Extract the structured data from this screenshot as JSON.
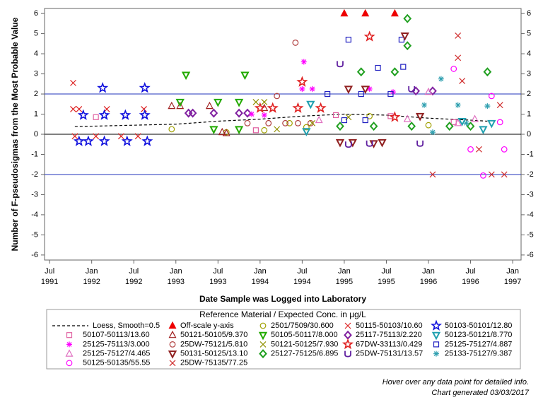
{
  "chart_data": {
    "type": "scatter",
    "x_label": "Date Sample was Logged into Laboratory",
    "y_label": "Number of F-pseudosigmas from the Most Probable Value",
    "xlim": [
      1991.44,
      1997.1
    ],
    "ylim": [
      -6.25,
      6.25
    ],
    "xticks": [
      {
        "value": 1991.5,
        "label": "Jul 1991"
      },
      {
        "value": 1992.0,
        "label": "Jan 1992"
      },
      {
        "value": 1992.5,
        "label": "Jul 1992"
      },
      {
        "value": 1993.0,
        "label": "Jan 1993"
      },
      {
        "value": 1993.5,
        "label": "Jul 1993"
      },
      {
        "value": 1994.0,
        "label": "Jan 1994"
      },
      {
        "value": 1994.5,
        "label": "Jul 1994"
      },
      {
        "value": 1995.0,
        "label": "Jan 1995"
      },
      {
        "value": 1995.5,
        "label": "Jul 1995"
      },
      {
        "value": 1996.0,
        "label": "Jan 1996"
      },
      {
        "value": 1996.5,
        "label": "Jul 1996"
      },
      {
        "value": 1997.0,
        "label": "Jan 1997"
      }
    ],
    "yticks": [
      -6,
      -5,
      -4,
      -3,
      -2,
      -1,
      0,
      1,
      2,
      3,
      4,
      5,
      6
    ],
    "y2ticks": [
      -6,
      -5,
      -4,
      -3,
      -2,
      -1,
      0,
      1,
      2,
      3,
      4,
      5,
      6
    ],
    "reference_lines": [
      {
        "value": 2,
        "color": "#2233bb"
      },
      {
        "value": 0,
        "color": "#000000"
      },
      {
        "value": -2,
        "color": "#2233bb"
      }
    ],
    "legend_title": "Reference Material / Expected Conc. in µg/L",
    "legend_columns": 5,
    "notes": [
      "Hover over any data point for detailed info.",
      "Chart generated 03/03/2017"
    ],
    "series": [
      {
        "name": "Loess, Smooth=0.5",
        "color": "#000000",
        "marker": "line",
        "x": [
          1991.8,
          1992.5,
          1993.0,
          1993.5,
          1994.0,
          1994.5,
          1995.0,
          1995.5,
          1996.0,
          1996.5,
          1996.7
        ],
        "values": [
          0.38,
          0.45,
          0.5,
          0.65,
          0.75,
          0.9,
          1.0,
          0.95,
          0.8,
          0.7,
          0.65
        ]
      },
      {
        "name": "Off-scale y-axis",
        "color": "#ee0000",
        "marker": "triangle-filled",
        "x": [
          1995.0,
          1995.25,
          1995.6
        ],
        "values": [
          6,
          6,
          6
        ]
      },
      {
        "name": "2501/7509/30.600",
        "color": "#a0a000",
        "marker": "circle",
        "x": [
          1992.95,
          1993.6,
          1994.05,
          1994.35,
          1994.55,
          1995.3,
          1996.0
        ],
        "values": [
          0.25,
          0.1,
          0.2,
          0.55,
          0.35,
          0.9,
          0.45
        ]
      },
      {
        "name": "50115-50103/10.60",
        "color": "#dd2222",
        "marker": "x",
        "x": [
          1991.78,
          1991.78,
          1991.85,
          1992.18,
          1992.62,
          1991.8,
          1992.05,
          1992.35,
          1992.55
        ],
        "values": [
          2.55,
          1.25,
          1.25,
          1.25,
          1.25,
          -0.1,
          -0.1,
          -0.1,
          -0.1
        ]
      },
      {
        "name": "50103-50101/12.80",
        "color": "#1010dd",
        "marker": "star",
        "x": [
          1991.85,
          1991.9,
          1991.96,
          1992.13,
          1992.15,
          1992.15,
          1992.4,
          1992.42,
          1992.63,
          1992.63,
          1992.66
        ],
        "values": [
          -0.35,
          0.95,
          -0.35,
          2.3,
          0.95,
          -0.35,
          0.95,
          -0.35,
          2.3,
          0.95,
          -0.35
        ]
      },
      {
        "name": "50107-50113/13.60",
        "color": "#e060a0",
        "marker": "square",
        "x": [
          1992.05,
          1993.95,
          1994.9,
          1995.55,
          1996.3
        ],
        "values": [
          0.85,
          0.2,
          0.95,
          0.9,
          0.6
        ]
      },
      {
        "name": "50121-50105/9.370",
        "color": "#a02020",
        "marker": "triangle",
        "x": [
          1992.95,
          1993.05,
          1993.4,
          1993.55,
          1993.6,
          1994.05
        ],
        "values": [
          1.4,
          1.4,
          1.4,
          0.1,
          0.05,
          1.3
        ]
      },
      {
        "name": "50105-50117/8.000",
        "color": "#22aa00",
        "marker": "triangle-down",
        "x": [
          1993.12,
          1993.5,
          1993.82,
          1993.75,
          1993.45,
          1993.75,
          1993.05
        ],
        "values": [
          2.95,
          1.6,
          2.95,
          1.6,
          0.25,
          0.25,
          1.6
        ]
      },
      {
        "name": "25117-75113/2.220",
        "color": "#8020a0",
        "marker": "diamond",
        "x": [
          1993.15,
          1993.2,
          1993.45,
          1993.75,
          1993.85,
          1995.85,
          1996.05
        ],
        "values": [
          1.05,
          1.05,
          1.05,
          1.05,
          1.05,
          2.15,
          2.15
        ]
      },
      {
        "name": "50123-50121/8.770",
        "color": "#20a0b0",
        "marker": "triangle-down",
        "x": [
          1994.55,
          1994.6,
          1996.4,
          1996.65,
          1996.75
        ],
        "values": [
          0.15,
          1.5,
          0.65,
          0.25,
          0.55
        ]
      },
      {
        "name": "25125-75113/3.000",
        "color": "#ff00ff",
        "marker": "asterisk",
        "x": [
          1993.9,
          1994.05,
          1994.5,
          1994.52,
          1994.62,
          1995.3,
          1995.58
        ],
        "values": [
          1.0,
          0.95,
          2.25,
          3.6,
          2.25,
          2.25,
          2.1
        ]
      },
      {
        "name": "25DW-75121/5.810",
        "color": "#b04040",
        "marker": "circle",
        "x": [
          1993.85,
          1994.1,
          1994.2,
          1994.3,
          1994.42,
          1994.45,
          1994.6
        ],
        "values": [
          0.55,
          0.55,
          1.9,
          0.55,
          4.55,
          0.55,
          0.55
        ]
      },
      {
        "name": "50121-50125/7.930",
        "color": "#909000",
        "marker": "x",
        "x": [
          1993.95,
          1994.05,
          1994.2,
          1994.62,
          1995.05
        ],
        "values": [
          1.6,
          1.6,
          0.25,
          0.55,
          0.85
        ]
      },
      {
        "name": "67DW-33113/0.429",
        "color": "#e02020",
        "marker": "star",
        "x": [
          1994.0,
          1994.15,
          1994.45,
          1994.5,
          1994.72,
          1995.3,
          1995.6
        ],
        "values": [
          1.3,
          1.3,
          1.3,
          2.6,
          1.3,
          4.85,
          0.85
        ]
      },
      {
        "name": "25125-75127/4.887",
        "color": "#2020c0",
        "marker": "square",
        "x": [
          1994.8,
          1995.05,
          1995.2,
          1995.4,
          1995.55,
          1995.68,
          1995.7,
          1995.0,
          1995.25
        ],
        "values": [
          2.0,
          4.7,
          2.0,
          3.3,
          2.0,
          4.7,
          3.35,
          0.7,
          0.7
        ]
      },
      {
        "name": "25125-75127/4.465",
        "color": "#e070c0",
        "marker": "triangle",
        "x": [
          1994.7,
          1995.75,
          1996.0,
          1996.35,
          1996.55
        ],
        "values": [
          0.7,
          0.75,
          2.1,
          0.55,
          0.75
        ]
      },
      {
        "name": "50131-50125/13.10",
        "color": "#902020",
        "marker": "triangle-down",
        "x": [
          1994.95,
          1995.1,
          1995.35,
          1995.45,
          1995.72,
          1995.9,
          1995.05,
          1995.25
        ],
        "values": [
          -0.4,
          -0.4,
          -0.45,
          -0.4,
          4.9,
          0.9,
          2.25,
          2.25
        ]
      },
      {
        "name": "25127-75125/6.895",
        "color": "#20a020",
        "marker": "diamond",
        "x": [
          1994.95,
          1995.2,
          1995.35,
          1995.6,
          1995.75,
          1995.75,
          1995.8,
          1996.25,
          1996.5,
          1996.7
        ],
        "values": [
          0.4,
          3.1,
          0.4,
          3.1,
          5.75,
          4.4,
          0.4,
          0.4,
          0.4,
          3.1
        ]
      },
      {
        "name": "25DW-75131/13.57",
        "color": "#6020a0",
        "marker": "cup",
        "x": [
          1994.95,
          1995.05,
          1995.3,
          1995.8,
          1995.9
        ],
        "values": [
          3.5,
          -0.5,
          -0.45,
          2.25,
          -0.45
        ]
      },
      {
        "name": "25133-75127/9.387",
        "color": "#30a0b0",
        "marker": "asterisk",
        "x": [
          1995.95,
          1996.05,
          1996.15,
          1996.35,
          1996.45,
          1996.7
        ],
        "values": [
          1.45,
          0.1,
          2.75,
          1.45,
          0.55,
          1.4
        ]
      },
      {
        "name": "50125-50135/55.55",
        "color": "#ff00ff",
        "marker": "circle",
        "x": [
          1996.3,
          1996.5,
          1996.65,
          1996.75,
          1996.85,
          1996.9
        ],
        "values": [
          3.25,
          -0.75,
          -2.05,
          1.9,
          0.6,
          -0.75
        ]
      },
      {
        "name": "25DW-75135/77.25",
        "color": "#d03030",
        "marker": "x",
        "x": [
          1996.05,
          1996.35,
          1996.35,
          1996.4,
          1996.6,
          1996.75,
          1996.85,
          1996.9
        ],
        "values": [
          -2.0,
          4.9,
          3.8,
          2.65,
          -0.75,
          -2.0,
          1.45,
          -2.0
        ]
      }
    ]
  }
}
